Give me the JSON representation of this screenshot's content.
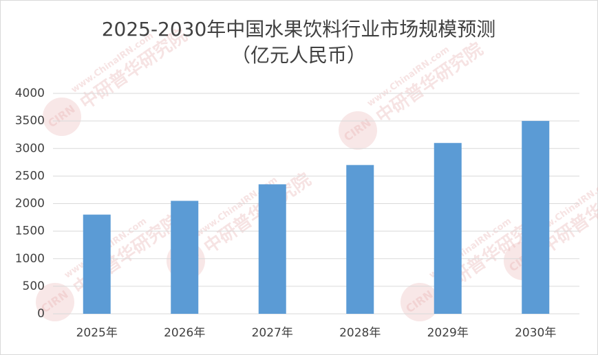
{
  "chart_data": {
    "type": "bar",
    "title": "2025-2030年中国水果饮料行业市场规模预测",
    "subtitle": "（亿元人民币）",
    "categories": [
      "2025年",
      "2026年",
      "2027年",
      "2028年",
      "2029年",
      "2030年"
    ],
    "values": [
      1800,
      2050,
      2350,
      2700,
      3100,
      3500
    ],
    "color": "#5b9bd5",
    "ylim": [
      0,
      4000
    ],
    "yticks": [
      0,
      500,
      1000,
      1500,
      2000,
      2500,
      3000,
      3500,
      4000
    ],
    "grid": true,
    "watermark": {
      "logo": "CIRN",
      "site": "www.ChinaIRN.com",
      "name": "中研普华研究院"
    }
  }
}
